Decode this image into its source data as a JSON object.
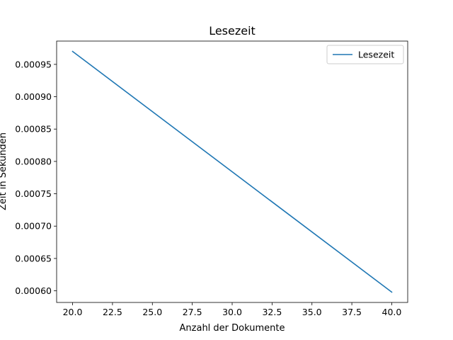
{
  "chart_data": {
    "type": "line",
    "title": "Lesezeit",
    "xlabel": "Anzahl der Dokumente",
    "ylabel": "Zeit in Sekunden",
    "xlim": [
      19.0,
      41.0
    ],
    "ylim": [
      0.000582,
      0.000986
    ],
    "xticks": [
      20.0,
      22.5,
      25.0,
      27.5,
      30.0,
      32.5,
      35.0,
      37.5,
      40.0
    ],
    "xtick_labels": [
      "20.0",
      "22.5",
      "25.0",
      "27.5",
      "30.0",
      "32.5",
      "35.0",
      "37.5",
      "40.0"
    ],
    "yticks": [
      0.0006,
      0.00065,
      0.0007,
      0.00075,
      0.0008,
      0.00085,
      0.0009,
      0.00095
    ],
    "ytick_labels": [
      "0.00060",
      "0.00065",
      "0.00070",
      "0.00075",
      "0.00080",
      "0.00085",
      "0.00090",
      "0.00095"
    ],
    "grid": false,
    "legend_position": "top-right",
    "series": [
      {
        "name": "Lesezeit",
        "color": "#1f77b4",
        "x": [
          20,
          40
        ],
        "y": [
          0.00097,
          0.000598
        ]
      }
    ]
  }
}
